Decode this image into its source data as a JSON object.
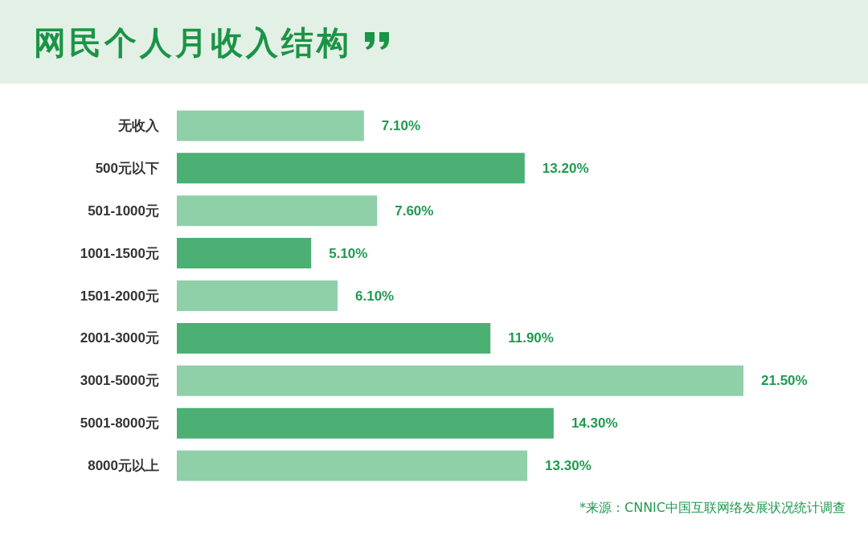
{
  "chart_data": {
    "type": "bar",
    "orientation": "horizontal",
    "title": "网民个人月收入结构",
    "categories": [
      "无收入",
      "500元以下",
      "501-1000元",
      "1001-1500元",
      "1501-2000元",
      "2001-3000元",
      "3001-5000元",
      "5001-8000元",
      "8000元以上"
    ],
    "values": [
      7.1,
      13.2,
      7.6,
      5.1,
      6.1,
      11.9,
      21.5,
      14.3,
      13.3
    ],
    "colors": [
      "#8fd0a9",
      "#4caf74",
      "#8fd0a9",
      "#4caf74",
      "#8fd0a9",
      "#4caf74",
      "#8fd0a9",
      "#4caf74",
      "#8fd0a9"
    ],
    "value_labels": [
      "7.10%",
      "13.20%",
      "7.60%",
      "5.10%",
      "6.10%",
      "11.90%",
      "21.50%",
      "14.30%",
      "13.30%"
    ],
    "annotations": [
      "*来源：CNNIC中国互联网络发展状况统计调查"
    ],
    "data_labels": false
  }
}
